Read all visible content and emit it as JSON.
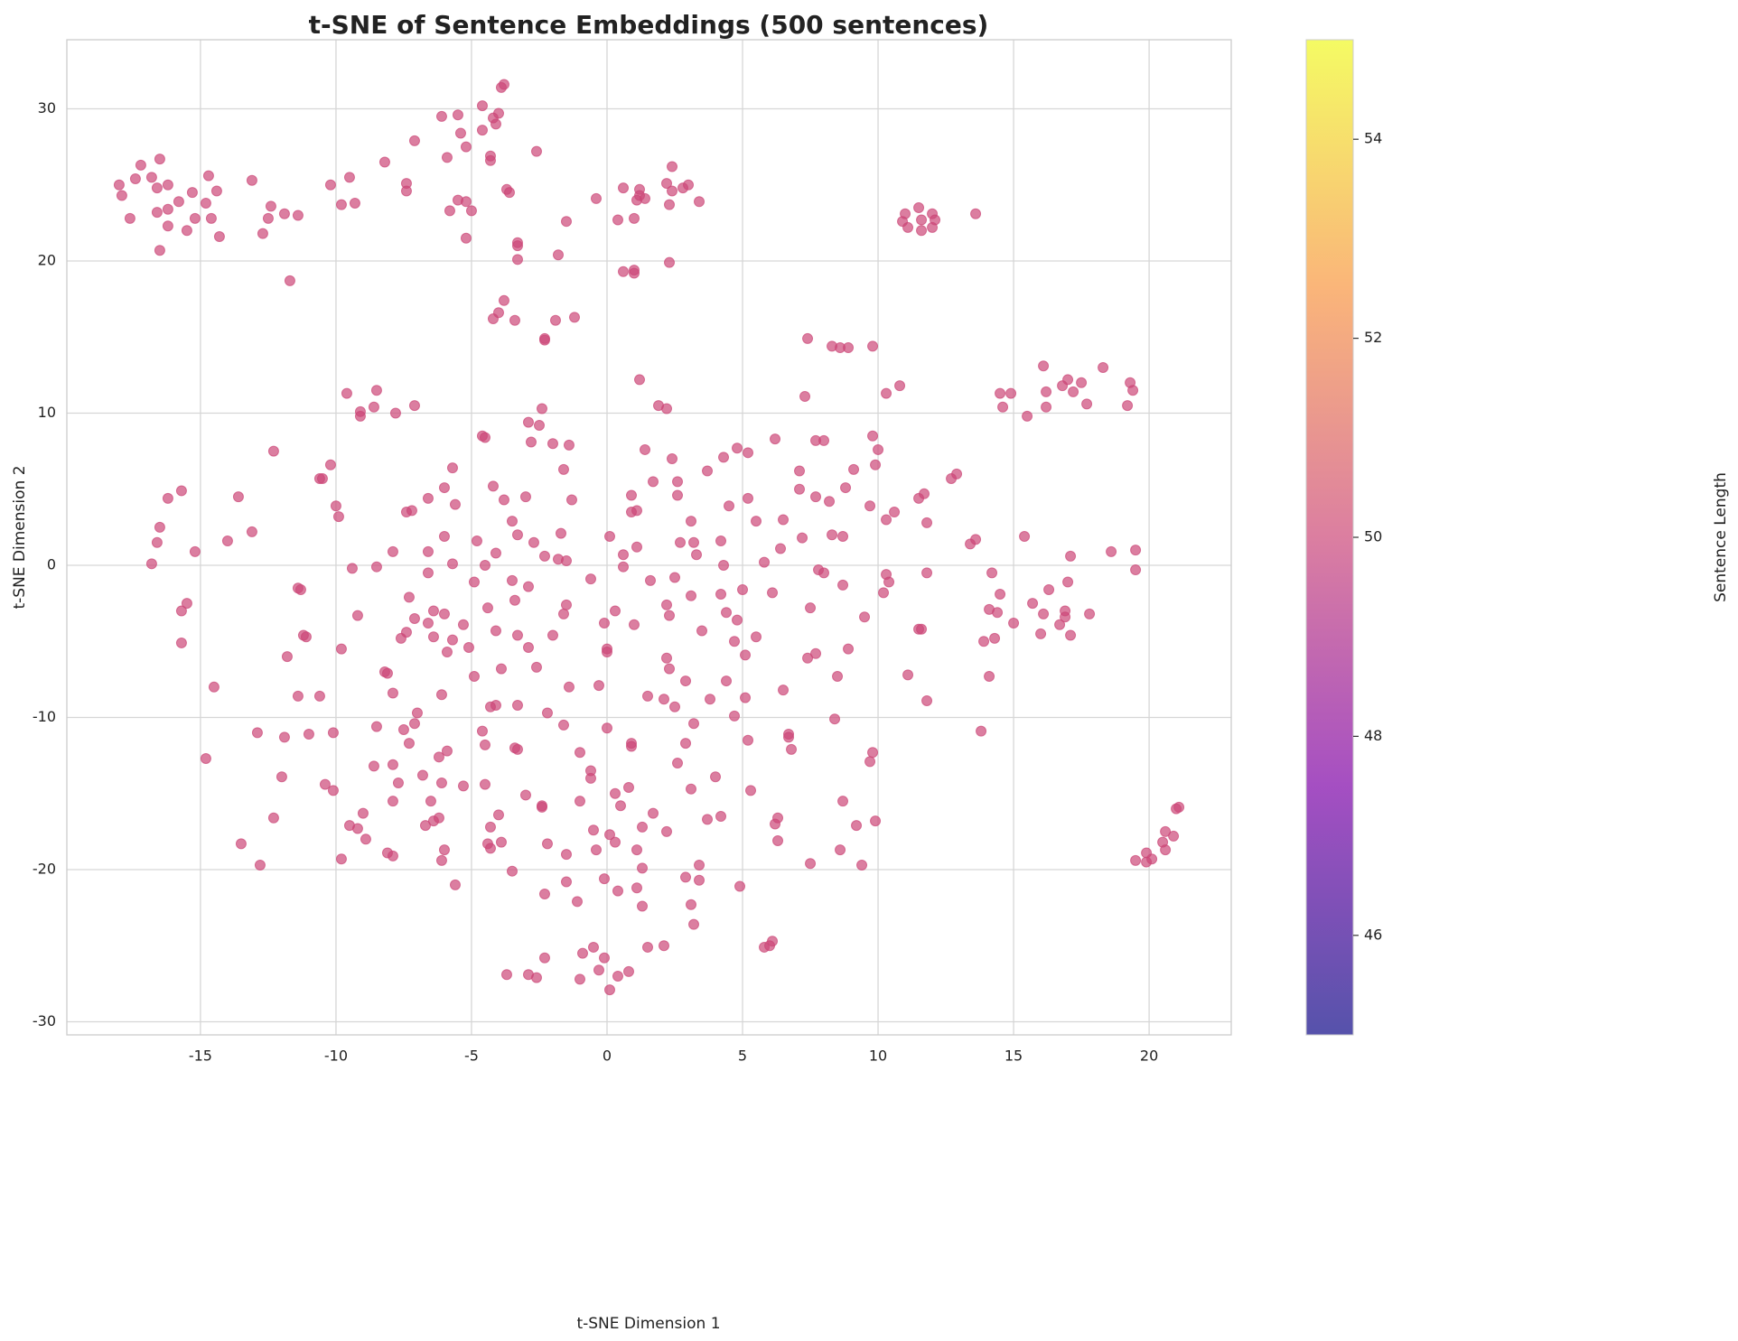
{
  "chart_data": {
    "type": "scatter",
    "title": "t-SNE of Sentence Embeddings (500 sentences)",
    "xlabel": "t-SNE Dimension 1",
    "ylabel": "t-SNE Dimension 2",
    "colorbar_label": "Sentence Length",
    "colormap": "plasma",
    "clim": [
      45,
      55
    ],
    "cticks": [
      46,
      48,
      50,
      52,
      54
    ],
    "color": "#cc4778",
    "alpha": 0.7,
    "grid": true,
    "xlim": [
      -19.93,
      23.03
    ],
    "ylim": [
      -30.86,
      34.54
    ],
    "xticks": [
      -15,
      -10,
      -5,
      0,
      5,
      10,
      15,
      20
    ],
    "yticks": [
      -30,
      -20,
      -10,
      0,
      10,
      20,
      30
    ],
    "x": [
      -18,
      -17.9,
      -17.6,
      -17.4,
      -17.2,
      -16.8,
      -16.6,
      -16.6,
      -16.5,
      -16.5,
      -16.2,
      -16.2,
      -16.2,
      -15.8,
      -15.5,
      -15.3,
      -15.2,
      -14.8,
      -14.7,
      -14.6,
      -14.4,
      -14.3,
      -13.1,
      -12.7,
      -12.5,
      -12.4,
      -11.9,
      -11.7,
      -11.4,
      -10.2,
      -9.8,
      -9.5,
      -9.3,
      -8.2,
      -7.4,
      -7.4,
      -7.1,
      -6.1,
      -5.9,
      -5.8,
      -5.5,
      -5.5,
      -5.4,
      -5.2,
      -5.2,
      -5.2,
      -5,
      -4.6,
      -4.6,
      -4.3,
      -4.3,
      -4.2,
      -4.1,
      -4,
      -3.9,
      -3.8,
      -3.7,
      -3.6,
      -3.3,
      -3.3,
      -3.3,
      -2.6,
      -1.8,
      -1.5,
      -0.4,
      0.4,
      0.6,
      0.6,
      1,
      1,
      1,
      1.1,
      1.2,
      1.2,
      1.4,
      2.2,
      2.3,
      2.3,
      2.4,
      2.4,
      2.8,
      3,
      3.4,
      -3.8,
      -4,
      -4.2,
      -3.4,
      -2.3,
      -2.3,
      -1.9,
      -1.2,
      10.9,
      11,
      11.1,
      11.5,
      11.6,
      11.6,
      12,
      12,
      12.1,
      13.6,
      7.4,
      8.3,
      8.6,
      8.9,
      9.8,
      7.3,
      10.3,
      10.8,
      1.2,
      16.1,
      16.2,
      16.2,
      16.8,
      17,
      17.2,
      17.5,
      17.7,
      18.3,
      19.3,
      19.4,
      19.2,
      14.5,
      14.6,
      14.9,
      15.5,
      -12.3,
      -10.2,
      -10.5,
      -10.6,
      -9.6,
      -9.1,
      -9.1,
      -8.6,
      -8.5,
      -7.8,
      -7.1,
      -15.7,
      -16.2,
      -16.5,
      -16.6,
      -16.8,
      -15.2,
      -14,
      -13.6,
      -13.1,
      -10,
      -9.9,
      -9.4,
      -8.5,
      -7.9,
      -7.4,
      -7.2,
      -11.4,
      -11.3,
      -11.2,
      -11.1,
      -15.5,
      -15.7,
      -15.7,
      -14.5,
      -11.8,
      -11.4,
      -10.6,
      -9.8,
      -9.2,
      -8.2,
      -8.1,
      -7.9,
      -7.6,
      -7.4,
      -7.3,
      -7.1,
      -6.6,
      -6.6,
      -6.4,
      -6.4,
      -6.1,
      -6,
      -5.9,
      -5.7,
      -5.3,
      -5.1,
      -4.9,
      -4.9,
      -4.4,
      -4.1,
      -3.9,
      -3.4,
      -3.3,
      -2.9,
      -2.9,
      -2.6,
      -2.2,
      -2,
      -1.6,
      -1.5,
      -1.4,
      -0.6,
      -0.3,
      -0.1,
      0,
      0,
      0.3,
      1,
      1.5,
      1.6,
      2.1,
      2.2,
      2.2,
      2.3,
      2.3,
      2.5,
      2.5,
      2.9,
      3.1,
      3.5,
      3.8,
      4.2,
      4.3,
      4.4,
      4.4,
      4.7,
      4.7,
      4.8,
      5,
      5.1,
      5.1,
      5.5,
      6.1,
      6.5,
      7.5,
      7.4,
      7.7,
      7.8,
      8,
      8.4,
      8.5,
      8.7,
      8.9,
      9.5,
      10.2,
      10.3,
      10.4,
      11.1,
      11.5,
      11.6,
      11.8,
      11.8,
      -6.6,
      -6.6,
      -6,
      -6,
      -5.7,
      -5.6,
      -5.7,
      -4.8,
      -4.6,
      -4.5,
      -4.5,
      -4.2,
      -4.1,
      -3.8,
      -3.5,
      -3.5,
      -3.3,
      -3,
      -2.9,
      -2.8,
      -2.7,
      -2.5,
      -2.4,
      -2.3,
      -2,
      -1.8,
      -1.7,
      -1.6,
      -1.5,
      -1.4,
      -1.3,
      0.1,
      0.6,
      0.6,
      0.9,
      0.9,
      1.1,
      1.1,
      1.4,
      1.7,
      1.9,
      2.2,
      2.4,
      2.6,
      2.6,
      2.7,
      3.2,
      3.1,
      3.3,
      3.7,
      4.2,
      4.3,
      4.5,
      4.8,
      5.2,
      5.2,
      5.5,
      5.8,
      6.2,
      6.4,
      6.5,
      7.1,
      7.1,
      7.2,
      7.7,
      7.7,
      8,
      8.2,
      8.3,
      8.7,
      8.8,
      9.1,
      9.7,
      9.8,
      9.9,
      10,
      10.3,
      10.6,
      11.5,
      11.7,
      11.8,
      12.7,
      12.9,
      13.4,
      13.6,
      15.4,
      13.8,
      13.9,
      14.1,
      14.1,
      14.2,
      14.3,
      14.4,
      14.5,
      15,
      15.7,
      16,
      16.1,
      16.3,
      16.7,
      16.9,
      16.9,
      17,
      17.1,
      17.1,
      17.8,
      18.6,
      19.5,
      19.5,
      19.5,
      19.9,
      19.9,
      20.1,
      20.5,
      20.6,
      20.6,
      20.9,
      21,
      21.1,
      -14.8,
      -13.5,
      -12.9,
      -12.8,
      -12.3,
      -12,
      -11.9,
      -11,
      -10.4,
      -10.1,
      -10.1,
      -9.8,
      -9.5,
      -9.2,
      -9,
      -8.9,
      -8.6,
      -8.5,
      -8.1,
      -7.9,
      -7.9,
      -7.9,
      -7.7,
      -7.5,
      -7.3,
      -7.1,
      -7,
      -6.8,
      -6.7,
      -6.5,
      -6.4,
      -6.2,
      -6.2,
      -6.1,
      -6.1,
      -6,
      -5.9,
      -5.6,
      -5.3,
      -4.6,
      -4.5,
      -4.5,
      -4.4,
      -4.3,
      -4.3,
      -4.3,
      -4.1,
      -4,
      -3.9,
      -3.7,
      -3.5,
      -3.4,
      -3.3,
      -3.3,
      -3,
      -2.9,
      -2.6,
      -2.4,
      -2.4,
      -2.3,
      -2.3,
      -2.2,
      -1.6,
      -1.5,
      -1.5,
      -1.1,
      -1,
      -1,
      -1,
      -0.9,
      -0.6,
      -0.6,
      -0.5,
      -0.5,
      -0.4,
      -0.3,
      -0.1,
      -0.1,
      0,
      0.1,
      0.1,
      0.3,
      0.3,
      0.4,
      0.4,
      0.5,
      0.8,
      0.8,
      0.9,
      0.9,
      1.1,
      1.1,
      1.3,
      1.3,
      1.3,
      1.5,
      1.7,
      2.1,
      2.2,
      2.6,
      2.9,
      2.9,
      3.1,
      3.1,
      3.2,
      3.2,
      3.4,
      3.4,
      3.7,
      4,
      4.2,
      4.9,
      5.2,
      5.3,
      5.8,
      6,
      6.1,
      6.2,
      6.3,
      6.3,
      6.7,
      6.7,
      6.8,
      7.5,
      8.6,
      8.7,
      9.2,
      9.4,
      9.7,
      9.8,
      9.9
    ],
    "y": [
      25,
      24.3,
      22.8,
      25.4,
      26.3,
      25.5,
      23.2,
      24.8,
      26.7,
      20.7,
      22.3,
      23.4,
      25,
      23.9,
      22,
      24.5,
      22.8,
      23.8,
      25.6,
      22.8,
      24.6,
      21.6,
      25.3,
      21.8,
      22.8,
      23.6,
      23.1,
      18.7,
      23,
      25,
      23.7,
      25.5,
      23.8,
      26.5,
      25.1,
      24.6,
      27.9,
      29.5,
      26.8,
      23.3,
      24,
      29.6,
      28.4,
      27.5,
      23.9,
      21.5,
      23.3,
      28.6,
      30.2,
      26.6,
      26.9,
      29.4,
      29,
      29.7,
      31.4,
      31.6,
      24.7,
      24.5,
      20.1,
      21,
      21.2,
      27.2,
      20.4,
      22.6,
      24.1,
      22.7,
      19.3,
      24.8,
      19.2,
      19.4,
      22.8,
      24,
      24.7,
      24.3,
      24.1,
      25.1,
      19.9,
      23.7,
      24.6,
      26.2,
      24.8,
      25,
      23.9,
      17.4,
      16.6,
      16.2,
      16.1,
      14.8,
      14.9,
      16.1,
      16.3,
      22.6,
      23.1,
      22.2,
      23.5,
      22.7,
      22,
      23.1,
      22.2,
      22.7,
      23.1,
      14.9,
      14.4,
      14.3,
      14.3,
      14.4,
      11.1,
      11.3,
      11.8,
      12.2,
      13.1,
      11.4,
      10.4,
      11.8,
      12.2,
      11.4,
      12,
      10.6,
      13,
      12,
      11.5,
      10.5,
      11.3,
      10.4,
      11.3,
      9.8,
      7.5,
      6.6,
      5.7,
      5.7,
      11.3,
      10.1,
      9.8,
      10.4,
      11.5,
      10,
      10.5,
      4.9,
      4.4,
      2.5,
      1.5,
      0.1,
      0.9,
      1.6,
      4.5,
      2.2,
      3.9,
      3.2,
      -0.2,
      -0.1,
      0.9,
      3.5,
      3.6,
      -1.5,
      -1.6,
      -4.6,
      -4.7,
      -2.5,
      -3,
      -5.1,
      -8,
      -6,
      -8.6,
      -8.6,
      -5.5,
      -3.3,
      -7,
      -7.1,
      -8.4,
      -4.8,
      -4.4,
      -2.1,
      -3.5,
      -0.5,
      -3.8,
      -3,
      -4.7,
      -8.5,
      -3.2,
      -5.7,
      -4.9,
      -3.9,
      -5.4,
      -7.3,
      -1.1,
      -2.8,
      -4.3,
      -6.8,
      -2.3,
      -4.6,
      -5.4,
      -1.4,
      -6.7,
      -9.7,
      -4.6,
      -3.2,
      -2.6,
      -8,
      -0.9,
      -7.9,
      -3.8,
      -5.5,
      -5.7,
      -3,
      -3.9,
      -8.6,
      -1,
      -8.8,
      -2.6,
      -6.1,
      -3.3,
      -6.8,
      -9.3,
      -0.8,
      -7.6,
      -2,
      -4.3,
      -8.8,
      -1.9,
      0,
      -3.1,
      -7.6,
      -9.9,
      -5,
      -3.6,
      -1.6,
      -8.7,
      -5.9,
      -4.7,
      -1.8,
      -8.2,
      -2.8,
      -6.1,
      -5.8,
      -0.3,
      -0.5,
      -10.1,
      -7.3,
      -1.3,
      -5.5,
      -3.4,
      -1.8,
      -0.6,
      -1.1,
      -7.2,
      -4.2,
      -4.2,
      -0.5,
      -8.9,
      4.4,
      0.9,
      1.9,
      5.1,
      6.4,
      4,
      0.1,
      1.6,
      8.5,
      8.4,
      0,
      5.2,
      0.8,
      4.3,
      2.9,
      -1,
      2,
      4.5,
      9.4,
      8.1,
      1.5,
      9.2,
      10.3,
      0.6,
      8,
      0.4,
      2.1,
      6.3,
      0.3,
      7.9,
      4.3,
      1.9,
      -0.1,
      0.7,
      4.6,
      3.5,
      3.6,
      1.2,
      7.6,
      5.5,
      10.5,
      10.3,
      7,
      5.5,
      4.6,
      1.5,
      1.5,
      2.9,
      0.7,
      6.2,
      1.6,
      7.1,
      3.9,
      7.7,
      7.4,
      4.4,
      2.9,
      0.2,
      8.3,
      1.1,
      3,
      6.2,
      5,
      1.8,
      8.2,
      4.5,
      8.2,
      4.2,
      2,
      1.9,
      5.1,
      6.3,
      3.9,
      8.5,
      6.6,
      7.6,
      3,
      3.5,
      4.4,
      4.7,
      2.8,
      5.7,
      6,
      1.4,
      1.7,
      1.9,
      -10.9,
      -5,
      -7.3,
      -2.9,
      -0.5,
      -4.8,
      -3.1,
      -1.9,
      -3.8,
      -2.5,
      -4.5,
      -3.2,
      -1.6,
      -3.9,
      -3,
      -3.4,
      -1.1,
      -4.6,
      0.6,
      -3.2,
      0.9,
      1,
      -0.3,
      -19.4,
      -19.5,
      -18.9,
      -19.3,
      -18.2,
      -17.5,
      -18.7,
      -17.8,
      -16,
      -15.9,
      -12.7,
      -18.3,
      -11,
      -19.7,
      -16.6,
      -13.9,
      -11.3,
      -11.1,
      -14.4,
      -14.8,
      -11,
      -19.3,
      -17.1,
      -17.3,
      -16.3,
      -18,
      -13.2,
      -10.6,
      -18.9,
      -19.1,
      -15.5,
      -13.1,
      -14.3,
      -10.8,
      -11.7,
      -10.4,
      -9.7,
      -13.8,
      -17.1,
      -15.5,
      -16.8,
      -16.6,
      -12.6,
      -14.3,
      -19.4,
      -18.7,
      -12.2,
      -21,
      -14.5,
      -10.9,
      -11.8,
      -14.4,
      -18.3,
      -18.6,
      -17.2,
      -9.3,
      -9.2,
      -16.4,
      -18.2,
      -26.9,
      -20.1,
      -12,
      -9.2,
      -12.1,
      -15.1,
      -26.9,
      -27.1,
      -15.8,
      -15.9,
      -21.6,
      -25.8,
      -18.3,
      -10.5,
      -19,
      -20.8,
      -22.1,
      -27.2,
      -12.3,
      -15.5,
      -25.5,
      -14,
      -13.5,
      -17.4,
      -25.1,
      -18.7,
      -26.6,
      -25.8,
      -20.6,
      -10.7,
      -27.9,
      -17.7,
      -18.2,
      -15,
      -27,
      -21.4,
      -15.8,
      -14.6,
      -26.7,
      -11.7,
      -11.9,
      -18.7,
      -21.2,
      -17.2,
      -19.9,
      -22.4,
      -25.1,
      -16.3,
      -25,
      -17.5,
      -13,
      -11.7,
      -20.5,
      -22.3,
      -14.7,
      -10.4,
      -23.6,
      -19.7,
      -20.7,
      -16.7,
      -13.9,
      -16.5,
      -21.1,
      -11.5,
      -14.8,
      -25.1,
      -25,
      -24.7,
      -17,
      -18.1,
      -16.6,
      -11.1,
      -11.3,
      -12.1,
      -19.6,
      -18.7,
      -15.5,
      -17.1,
      -19.7,
      -12.9,
      -12.3,
      -16.8
    ]
  }
}
